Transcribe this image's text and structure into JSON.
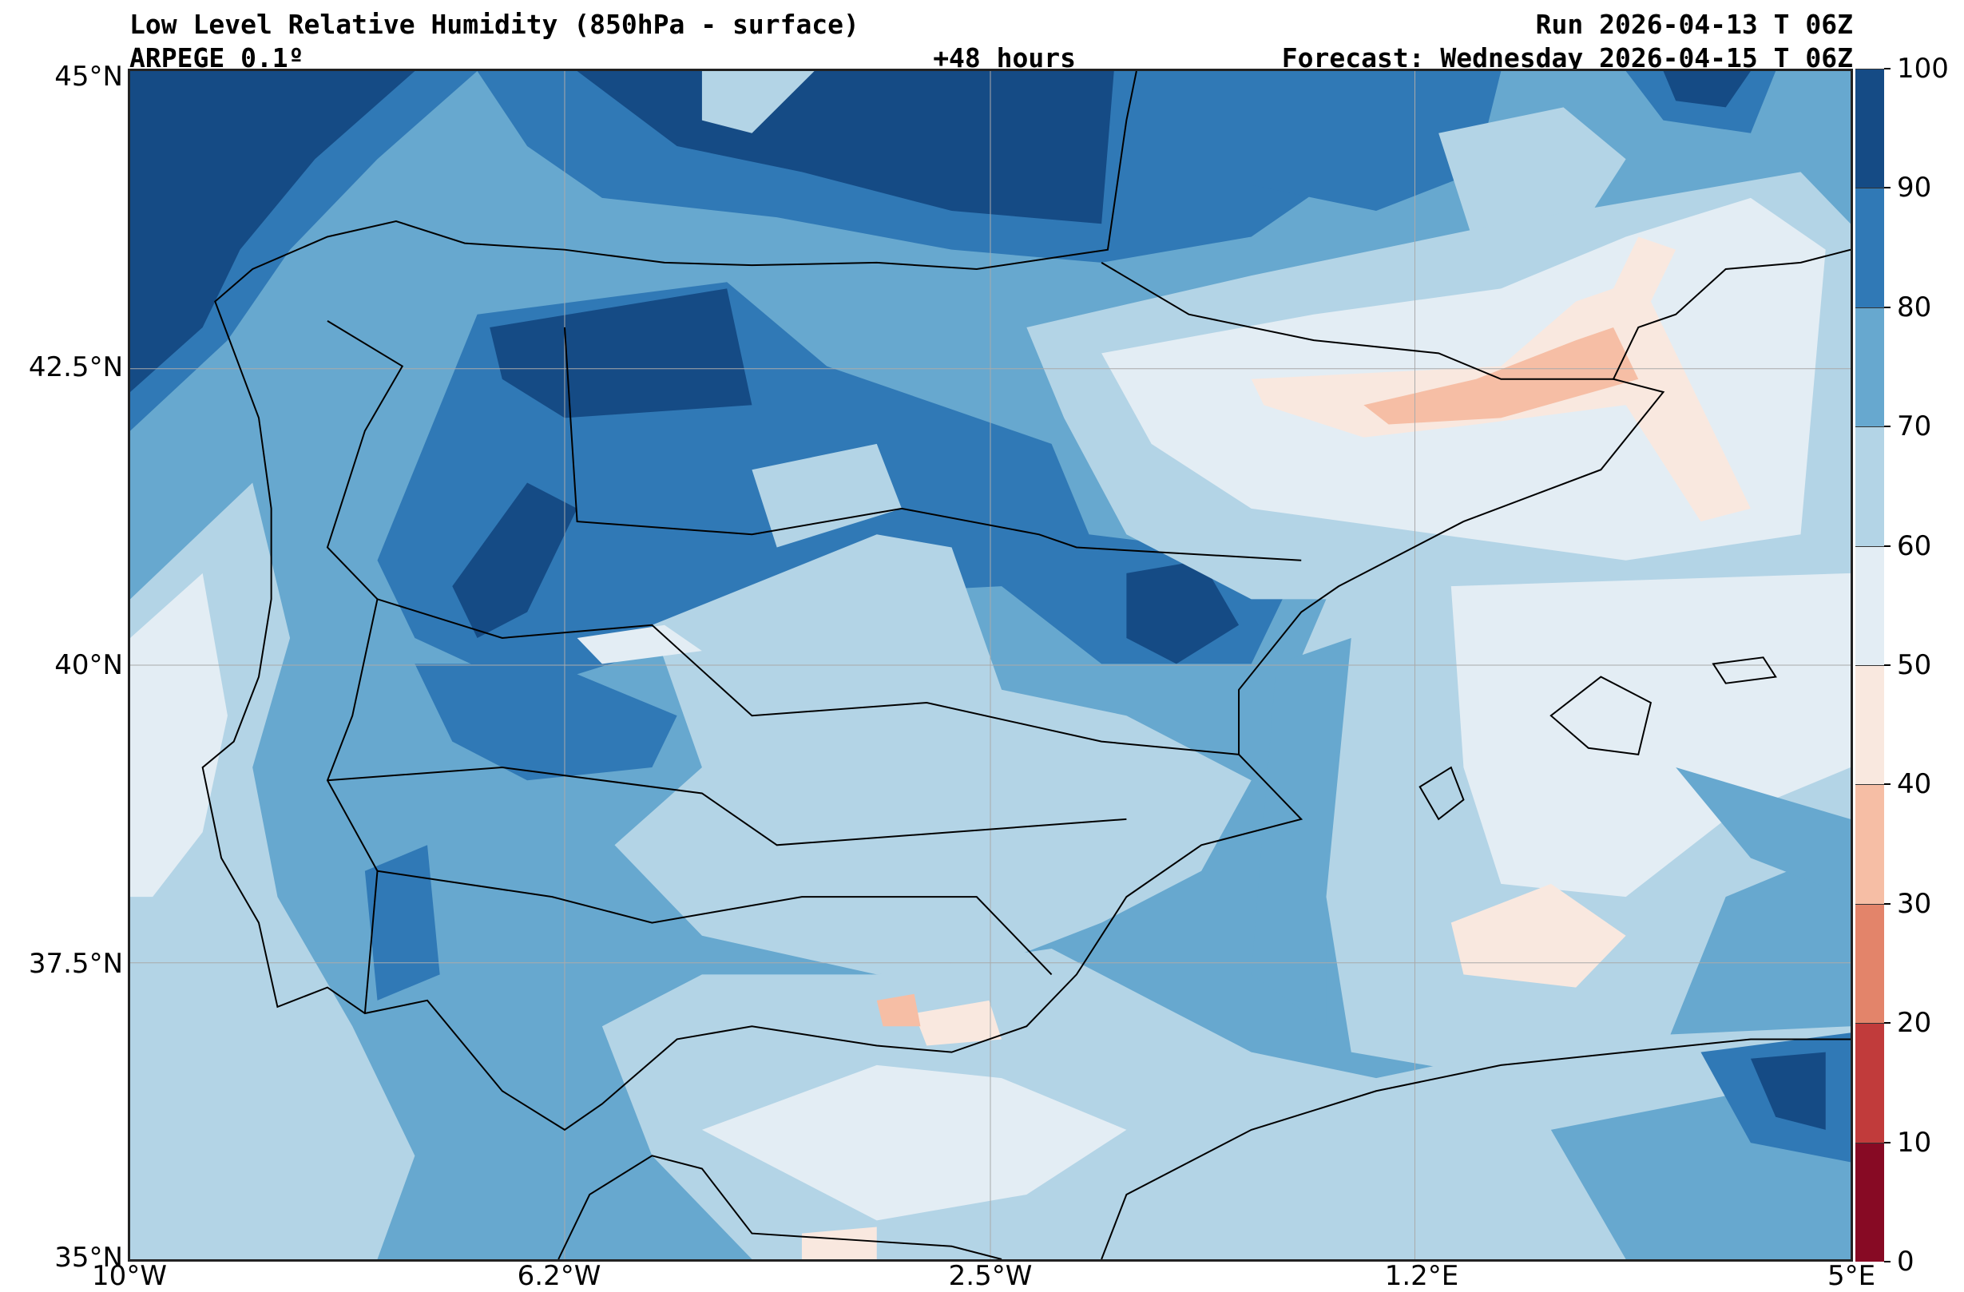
{
  "header": {
    "title": "Low Level Relative Humidity (850hPa - surface)",
    "model": "ARPEGE 0.1º",
    "lead_time": "+48 hours",
    "run": "Run 2026-04-13 T 06Z",
    "forecast": "Forecast: Wednesday 2026-04-15 T 06Z"
  },
  "axes": {
    "lat_labels": [
      "45°N",
      "42.5°N",
      "40°N",
      "37.5°N",
      "35°N"
    ],
    "lon_labels": [
      "10°W",
      "6.2°W",
      "2.5°W",
      "1.2°E",
      "5°E"
    ]
  },
  "colorbar": {
    "labels": [
      "0",
      "10",
      "20",
      "30",
      "40",
      "50",
      "60",
      "70",
      "80",
      "90",
      "100"
    ],
    "colors": [
      "#870a24",
      "#c13b3b",
      "#e3846a",
      "#f6bea5",
      "#f9e8df",
      "#e3edf4",
      "#b3d4e6",
      "#67a8cf",
      "#3079b6",
      "#154b85"
    ]
  }
}
